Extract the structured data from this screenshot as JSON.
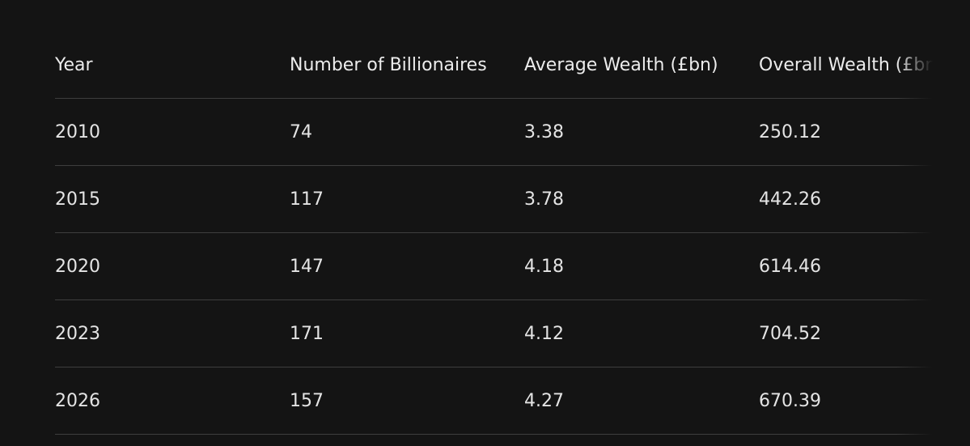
{
  "table": {
    "header": [
      "Year",
      "Number of Billionaires",
      "Average Wealth (£bn)",
      "Overall Wealth (£bn)"
    ],
    "rows": [
      [
        2010,
        74,
        3.38,
        250.12
      ],
      [
        2015,
        117,
        3.78,
        442.26
      ],
      [
        2020,
        147,
        4.18,
        614.46
      ],
      [
        2023,
        171,
        4.12,
        704.52
      ],
      [
        2026,
        157,
        4.27,
        670.39
      ]
    ]
  }
}
